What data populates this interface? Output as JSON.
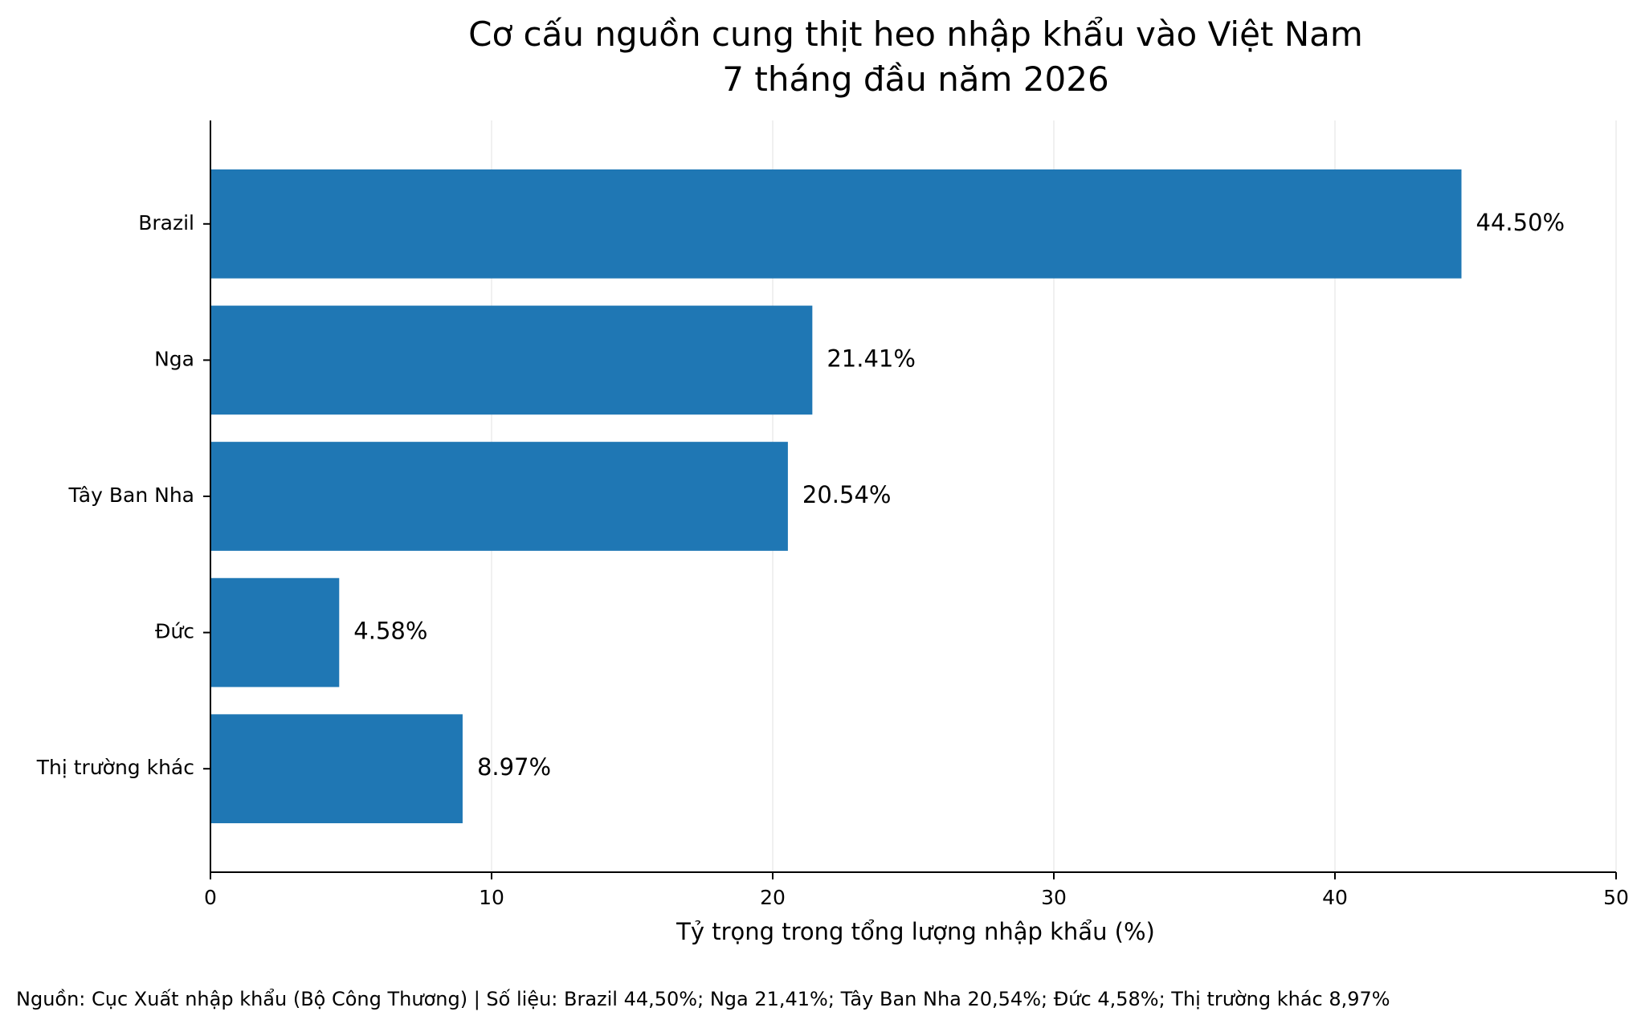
{
  "chart_data": {
    "type": "bar",
    "orientation": "horizontal",
    "title": "Cơ cấu nguồn cung thịt heo nhập khẩu vào Việt Nam\n7 tháng đầu năm 2026",
    "title_lines": [
      "Cơ cấu nguồn cung thịt heo nhập khẩu vào Việt Nam",
      "7 tháng đầu năm 2026"
    ],
    "categories": [
      "Brazil",
      "Nga",
      "Tây Ban Nha",
      "Đức",
      "Thị trường khác"
    ],
    "values": [
      44.5,
      21.41,
      20.54,
      4.58,
      8.97
    ],
    "value_labels": [
      "44.50%",
      "21.41%",
      "20.54%",
      "4.58%",
      "8.97%"
    ],
    "xlabel": "Tỷ trọng trong tổng lượng nhập khẩu (%)",
    "ylabel": "",
    "xlim": [
      0,
      50
    ],
    "x_ticks": [
      0,
      10,
      20,
      30,
      40,
      50
    ],
    "x_tick_labels": [
      "0",
      "10",
      "20",
      "30",
      "40",
      "50"
    ],
    "grid": "x-axis vertical lines",
    "bar_color": "#1f77b4",
    "source_note": "Nguồn: Cục Xuất nhập khẩu (Bộ Công Thương) | Số liệu: Brazil 44,50%; Nga 21,41%; Tây Ban Nha 20,54%; Đức 4,58%; Thị trường khác 8,97%"
  }
}
